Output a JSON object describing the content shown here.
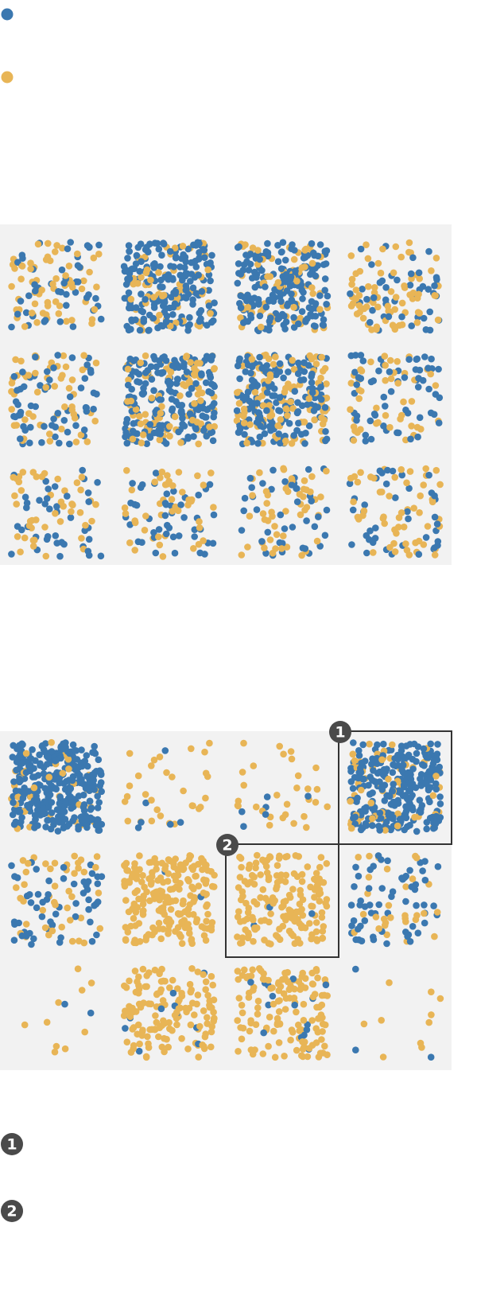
{
  "colors": {
    "blue": "#3b78b0",
    "gold": "#e8b556",
    "panel": "#f2f2f2",
    "highlight": "#333333",
    "badge": "#4a4a4a",
    "badge_text": "#ffffff"
  },
  "legend": {
    "items": [
      {
        "color": "blue",
        "icon": "blue-dot-icon",
        "label": ""
      },
      {
        "color": "gold",
        "icon": "gold-dot-icon",
        "label": ""
      }
    ]
  },
  "chart_data": [
    {
      "type": "scatter",
      "title": "",
      "grid_rows": 3,
      "grid_cols": 4,
      "cells": [
        {
          "row": 1,
          "col": 1,
          "blue": 45,
          "gold": 65
        },
        {
          "row": 1,
          "col": 2,
          "blue": 200,
          "gold": 60
        },
        {
          "row": 1,
          "col": 3,
          "blue": 180,
          "gold": 70
        },
        {
          "row": 1,
          "col": 4,
          "blue": 45,
          "gold": 75
        },
        {
          "row": 2,
          "col": 1,
          "blue": 60,
          "gold": 55
        },
        {
          "row": 2,
          "col": 2,
          "blue": 200,
          "gold": 90
        },
        {
          "row": 2,
          "col": 3,
          "blue": 170,
          "gold": 110
        },
        {
          "row": 2,
          "col": 4,
          "blue": 60,
          "gold": 45
        },
        {
          "row": 3,
          "col": 1,
          "blue": 40,
          "gold": 45
        },
        {
          "row": 3,
          "col": 2,
          "blue": 45,
          "gold": 45
        },
        {
          "row": 3,
          "col": 3,
          "blue": 40,
          "gold": 50
        },
        {
          "row": 3,
          "col": 4,
          "blue": 40,
          "gold": 55
        }
      ]
    },
    {
      "type": "scatter",
      "title": "",
      "grid_rows": 3,
      "grid_cols": 4,
      "cells": [
        {
          "row": 1,
          "col": 1,
          "blue": 330,
          "gold": 40
        },
        {
          "row": 1,
          "col": 2,
          "blue": 6,
          "gold": 30
        },
        {
          "row": 1,
          "col": 3,
          "blue": 6,
          "gold": 30
        },
        {
          "row": 1,
          "col": 4,
          "blue": 260,
          "gold": 60,
          "highlight": "1"
        },
        {
          "row": 2,
          "col": 1,
          "blue": 55,
          "gold": 45
        },
        {
          "row": 2,
          "col": 2,
          "blue": 2,
          "gold": 210
        },
        {
          "row": 2,
          "col": 3,
          "blue": 3,
          "gold": 170,
          "highlight": "2"
        },
        {
          "row": 2,
          "col": 4,
          "blue": 60,
          "gold": 30
        },
        {
          "row": 3,
          "col": 1,
          "blue": 2,
          "gold": 10
        },
        {
          "row": 3,
          "col": 2,
          "blue": 10,
          "gold": 140
        },
        {
          "row": 3,
          "col": 3,
          "blue": 15,
          "gold": 140
        },
        {
          "row": 3,
          "col": 4,
          "blue": 3,
          "gold": 10
        }
      ]
    }
  ],
  "badges": [
    "1",
    "2"
  ],
  "footnotes": [
    {
      "badge": "1",
      "text": ""
    },
    {
      "badge": "2",
      "text": ""
    }
  ]
}
